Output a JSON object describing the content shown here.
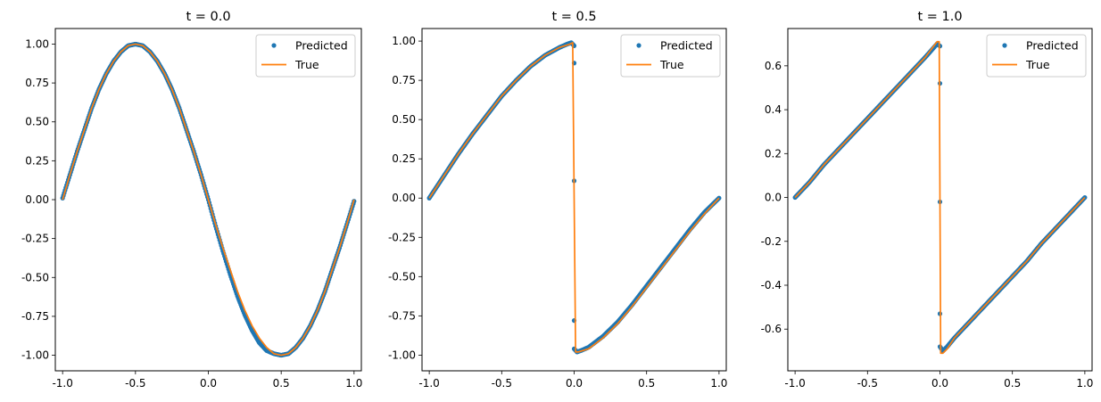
{
  "colors": {
    "predicted": "#1f77b4",
    "true": "#ff7f0e"
  },
  "chart_data": [
    {
      "type": "line",
      "title": "t = 0.0",
      "xlim": [
        -1.05,
        1.05
      ],
      "ylim": [
        -1.1,
        1.1
      ],
      "xticks": [
        "-1.0",
        "-0.5",
        "0.0",
        "0.5",
        "1.0"
      ],
      "xtick_values": [
        -1.0,
        -0.5,
        0.0,
        0.5,
        1.0
      ],
      "yticks": [
        "-1.00",
        "-0.75",
        "-0.50",
        "-0.25",
        "0.00",
        "0.25",
        "0.50",
        "0.75",
        "1.00"
      ],
      "ytick_values": [
        -1.0,
        -0.75,
        -0.5,
        -0.25,
        0.0,
        0.25,
        0.5,
        0.75,
        1.0
      ],
      "legend": {
        "placement": "top-right",
        "entries": [
          "Predicted",
          "True"
        ]
      },
      "series": [
        {
          "name": "Predicted",
          "style": "points",
          "x": [
            -1.0,
            -0.95,
            -0.9,
            -0.85,
            -0.8,
            -0.75,
            -0.7,
            -0.65,
            -0.6,
            -0.55,
            -0.5,
            -0.45,
            -0.4,
            -0.35,
            -0.3,
            -0.25,
            -0.2,
            -0.15,
            -0.1,
            -0.05,
            0.0,
            0.05,
            0.1,
            0.15,
            0.2,
            0.25,
            0.3,
            0.35,
            0.4,
            0.45,
            0.5,
            0.55,
            0.6,
            0.65,
            0.7,
            0.75,
            0.8,
            0.85,
            0.9,
            0.95,
            1.0
          ],
          "y": [
            0.01,
            0.16,
            0.31,
            0.45,
            0.59,
            0.71,
            0.81,
            0.89,
            0.95,
            0.99,
            1.0,
            0.99,
            0.95,
            0.89,
            0.81,
            0.71,
            0.59,
            0.45,
            0.31,
            0.16,
            0.0,
            -0.17,
            -0.33,
            -0.48,
            -0.62,
            -0.74,
            -0.84,
            -0.92,
            -0.97,
            -0.99,
            -1.0,
            -0.99,
            -0.95,
            -0.89,
            -0.81,
            -0.71,
            -0.59,
            -0.45,
            -0.31,
            -0.16,
            -0.01
          ]
        },
        {
          "name": "True",
          "style": "line",
          "x": [
            -1.0,
            -0.95,
            -0.9,
            -0.85,
            -0.8,
            -0.75,
            -0.7,
            -0.65,
            -0.6,
            -0.55,
            -0.5,
            -0.45,
            -0.4,
            -0.35,
            -0.3,
            -0.25,
            -0.2,
            -0.15,
            -0.1,
            -0.05,
            0.0,
            0.05,
            0.1,
            0.15,
            0.2,
            0.25,
            0.3,
            0.35,
            0.4,
            0.45,
            0.5,
            0.55,
            0.6,
            0.65,
            0.7,
            0.75,
            0.8,
            0.85,
            0.9,
            0.95,
            1.0
          ],
          "y": [
            0.0,
            0.16,
            0.31,
            0.45,
            0.59,
            0.71,
            0.81,
            0.89,
            0.95,
            0.99,
            1.0,
            0.99,
            0.95,
            0.89,
            0.81,
            0.71,
            0.59,
            0.45,
            0.31,
            0.16,
            0.0,
            -0.16,
            -0.31,
            -0.45,
            -0.59,
            -0.71,
            -0.81,
            -0.89,
            -0.95,
            -0.99,
            -1.0,
            -0.99,
            -0.95,
            -0.89,
            -0.81,
            -0.71,
            -0.59,
            -0.45,
            -0.31,
            -0.16,
            0.0
          ]
        }
      ]
    },
    {
      "type": "line",
      "title": "t = 0.5",
      "xlim": [
        -1.05,
        1.05
      ],
      "ylim": [
        -1.1,
        1.08
      ],
      "xticks": [
        "-1.0",
        "-0.5",
        "0.0",
        "0.5",
        "1.0"
      ],
      "xtick_values": [
        -1.0,
        -0.5,
        0.0,
        0.5,
        1.0
      ],
      "yticks": [
        "-1.00",
        "-0.75",
        "-0.50",
        "-0.25",
        "0.00",
        "0.25",
        "0.50",
        "0.75",
        "1.00"
      ],
      "ytick_values": [
        -1.0,
        -0.75,
        -0.5,
        -0.25,
        0.0,
        0.25,
        0.5,
        0.75,
        1.0
      ],
      "legend": {
        "placement": "top-right",
        "entries": [
          "Predicted",
          "True"
        ]
      },
      "series": [
        {
          "name": "Predicted",
          "style": "points",
          "x": [
            -1.0,
            -0.9,
            -0.8,
            -0.7,
            -0.6,
            -0.5,
            -0.4,
            -0.3,
            -0.2,
            -0.1,
            -0.05,
            -0.02,
            0.0,
            0.0,
            0.0,
            0.0,
            0.0,
            0.02,
            0.05,
            0.1,
            0.2,
            0.3,
            0.4,
            0.5,
            0.6,
            0.7,
            0.8,
            0.9,
            1.0
          ],
          "y": [
            0.0,
            0.14,
            0.28,
            0.41,
            0.53,
            0.65,
            0.75,
            0.84,
            0.91,
            0.96,
            0.98,
            0.99,
            0.97,
            0.86,
            0.11,
            -0.78,
            -0.96,
            -0.98,
            -0.97,
            -0.95,
            -0.88,
            -0.79,
            -0.68,
            -0.56,
            -0.44,
            -0.32,
            -0.2,
            -0.09,
            0.0
          ]
        },
        {
          "name": "True",
          "style": "line",
          "x": [
            -1.0,
            -0.9,
            -0.8,
            -0.7,
            -0.6,
            -0.5,
            -0.4,
            -0.3,
            -0.2,
            -0.1,
            -0.03,
            -0.01,
            0.0,
            0.01,
            0.03,
            0.1,
            0.2,
            0.3,
            0.4,
            0.5,
            0.6,
            0.7,
            0.8,
            0.9,
            1.0
          ],
          "y": [
            0.0,
            0.14,
            0.28,
            0.41,
            0.53,
            0.65,
            0.75,
            0.84,
            0.91,
            0.96,
            0.98,
            0.99,
            0.0,
            -0.98,
            -0.98,
            -0.96,
            -0.89,
            -0.8,
            -0.69,
            -0.57,
            -0.45,
            -0.33,
            -0.21,
            -0.1,
            0.0
          ]
        }
      ]
    },
    {
      "type": "line",
      "title": "t = 1.0",
      "xlim": [
        -1.05,
        1.05
      ],
      "ylim": [
        -0.79,
        0.77
      ],
      "xticks": [
        "-1.0",
        "-0.5",
        "0.0",
        "0.5",
        "1.0"
      ],
      "xtick_values": [
        -1.0,
        -0.5,
        0.0,
        0.5,
        1.0
      ],
      "yticks": [
        "-0.6",
        "-0.4",
        "-0.2",
        "0.0",
        "0.2",
        "0.4",
        "0.6"
      ],
      "ytick_values": [
        -0.6,
        -0.4,
        -0.2,
        0.0,
        0.2,
        0.4,
        0.6
      ],
      "legend": {
        "placement": "top-right",
        "entries": [
          "Predicted",
          "True"
        ]
      },
      "series": [
        {
          "name": "Predicted",
          "style": "points",
          "x": [
            -1.0,
            -0.9,
            -0.8,
            -0.7,
            -0.6,
            -0.5,
            -0.4,
            -0.3,
            -0.2,
            -0.1,
            -0.02,
            0.0,
            0.0,
            0.0,
            0.0,
            0.0,
            0.02,
            0.05,
            0.1,
            0.2,
            0.3,
            0.4,
            0.5,
            0.6,
            0.7,
            0.8,
            0.9,
            1.0
          ],
          "y": [
            0.0,
            0.07,
            0.15,
            0.22,
            0.29,
            0.36,
            0.43,
            0.5,
            0.57,
            0.64,
            0.7,
            0.69,
            0.52,
            -0.02,
            -0.53,
            -0.68,
            -0.7,
            -0.68,
            -0.64,
            -0.57,
            -0.5,
            -0.43,
            -0.36,
            -0.29,
            -0.21,
            -0.14,
            -0.07,
            0.0
          ]
        },
        {
          "name": "True",
          "style": "line",
          "x": [
            -1.0,
            -0.9,
            -0.8,
            -0.7,
            -0.6,
            -0.5,
            -0.4,
            -0.3,
            -0.2,
            -0.1,
            -0.02,
            -0.005,
            0.005,
            0.02,
            0.05,
            0.1,
            0.2,
            0.3,
            0.4,
            0.5,
            0.6,
            0.7,
            0.8,
            0.9,
            1.0
          ],
          "y": [
            0.0,
            0.07,
            0.15,
            0.22,
            0.29,
            0.36,
            0.43,
            0.5,
            0.57,
            0.64,
            0.71,
            0.71,
            -0.71,
            -0.71,
            -0.69,
            -0.64,
            -0.57,
            -0.5,
            -0.43,
            -0.36,
            -0.29,
            -0.21,
            -0.14,
            -0.07,
            0.0
          ]
        }
      ]
    }
  ]
}
